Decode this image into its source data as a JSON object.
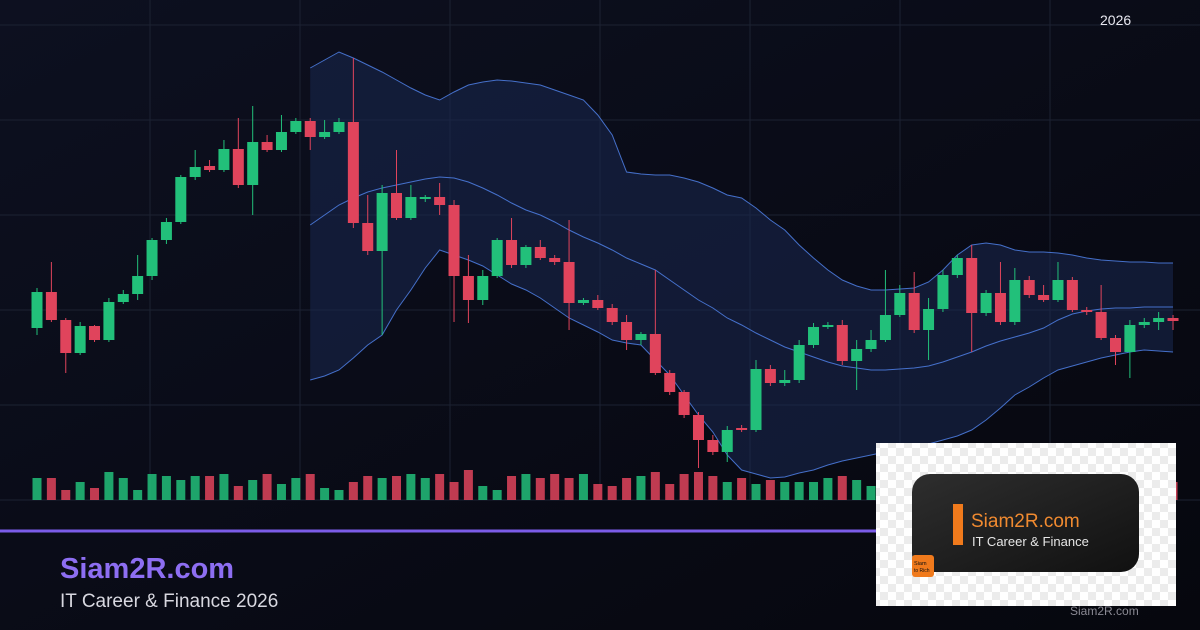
{
  "brand": {
    "year_tag": "2026",
    "title": "Siam2R.com",
    "subtitle": "IT Career & Finance 2026",
    "watermark": "Siam2R.com"
  },
  "logo": {
    "title": "Siam2R.com",
    "subtitle": "IT Career & Finance",
    "icon_top": "Siam",
    "icon_bottom": "to Rich"
  },
  "chart_data": {
    "type": "candlestick",
    "open": [
      172,
      208,
      180,
      147,
      174,
      160,
      198,
      206,
      224,
      260,
      278,
      323,
      334,
      330,
      351,
      315,
      358,
      350,
      368,
      379,
      363,
      368,
      378,
      277,
      249,
      307,
      282,
      301,
      303,
      295,
      224,
      200,
      224,
      260,
      235,
      253,
      242,
      238,
      197,
      200,
      192,
      178,
      160,
      166,
      127,
      108,
      85,
      60,
      48,
      72,
      70,
      131,
      117,
      120,
      155,
      173,
      175,
      139,
      151,
      160,
      185,
      207,
      170,
      191,
      225,
      242,
      187,
      207,
      178,
      220,
      205,
      200,
      220,
      190,
      188,
      162,
      148,
      175,
      178,
      182
    ],
    "high": [
      212,
      238,
      182,
      178,
      175,
      202,
      210,
      245,
      262,
      282,
      325,
      350,
      340,
      360,
      382,
      394,
      365,
      385,
      382,
      382,
      380,
      382,
      442,
      305,
      315,
      350,
      315,
      305,
      317,
      300,
      245,
      230,
      262,
      282,
      255,
      260,
      245,
      280,
      202,
      205,
      196,
      185,
      168,
      230,
      130,
      110,
      88,
      65,
      74,
      75,
      140,
      135,
      130,
      160,
      177,
      178,
      180,
      160,
      170,
      230,
      215,
      228,
      202,
      230,
      245,
      255,
      210,
      238,
      232,
      224,
      215,
      238,
      223,
      193,
      215,
      165,
      180,
      182,
      188,
      185
    ],
    "low": [
      165,
      178,
      127,
      145,
      158,
      158,
      196,
      200,
      220,
      256,
      276,
      320,
      328,
      328,
      312,
      285,
      348,
      348,
      366,
      350,
      361,
      366,
      272,
      245,
      165,
      280,
      280,
      298,
      285,
      178,
      177,
      195,
      222,
      232,
      232,
      240,
      235,
      170,
      195,
      190,
      175,
      150,
      155,
      125,
      105,
      82,
      32,
      45,
      38,
      68,
      68,
      114,
      114,
      117,
      152,
      171,
      135,
      110,
      148,
      158,
      183,
      167,
      140,
      188,
      222,
      148,
      184,
      175,
      175,
      202,
      198,
      198,
      188,
      185,
      160,
      135,
      122,
      172,
      170,
      170
    ],
    "close": [
      208,
      180,
      147,
      174,
      160,
      198,
      206,
      224,
      260,
      278,
      323,
      333,
      330,
      351,
      315,
      358,
      350,
      368,
      379,
      363,
      368,
      378,
      277,
      249,
      307,
      282,
      303,
      303,
      295,
      224,
      200,
      224,
      260,
      235,
      253,
      242,
      238,
      197,
      200,
      192,
      178,
      160,
      166,
      127,
      108,
      85,
      60,
      48,
      70,
      70,
      131,
      117,
      120,
      155,
      173,
      175,
      139,
      151,
      160,
      185,
      207,
      170,
      191,
      225,
      242,
      187,
      207,
      178,
      220,
      205,
      200,
      220,
      190,
      188,
      162,
      148,
      175,
      178,
      182,
      179
    ],
    "volume": [
      22,
      22,
      10,
      18,
      12,
      28,
      22,
      10,
      26,
      24,
      20,
      24,
      24,
      26,
      14,
      20,
      26,
      16,
      22,
      26,
      12,
      10,
      18,
      24,
      22,
      24,
      26,
      22,
      26,
      18,
      30,
      14,
      10,
      24,
      26,
      22,
      26,
      22,
      26,
      16,
      14,
      22,
      24,
      28,
      16,
      26,
      28,
      24,
      18,
      22,
      16,
      20,
      18,
      18,
      18,
      22,
      24,
      20,
      14,
      10,
      12,
      18,
      20,
      14,
      22,
      24,
      18,
      20,
      16,
      22,
      26,
      22,
      14,
      16,
      20,
      24,
      22,
      18,
      20,
      18
    ],
    "bands": {
      "upper": [
        null,
        null,
        null,
        null,
        null,
        null,
        null,
        null,
        null,
        null,
        null,
        null,
        null,
        null,
        null,
        null,
        null,
        null,
        null,
        432,
        440,
        448,
        442,
        435,
        428,
        420,
        412,
        405,
        400,
        408,
        415,
        418,
        420,
        419,
        417,
        415,
        410,
        405,
        400,
        385,
        365,
        328,
        326,
        325,
        325,
        322,
        318,
        312,
        305,
        302,
        292,
        280,
        270,
        255,
        242,
        230,
        220,
        214,
        210,
        210,
        211,
        212,
        218,
        230,
        245,
        255,
        257,
        255,
        250,
        248,
        248,
        247,
        245,
        242,
        240,
        239,
        238,
        238,
        237,
        237
      ],
      "middle": [
        null,
        null,
        null,
        null,
        null,
        null,
        null,
        null,
        null,
        null,
        null,
        null,
        null,
        null,
        null,
        null,
        null,
        null,
        null,
        275,
        285,
        295,
        302,
        308,
        312,
        315,
        318,
        321,
        323,
        322,
        318,
        312,
        305,
        297,
        290,
        285,
        278,
        270,
        263,
        257,
        250,
        242,
        236,
        230,
        220,
        210,
        200,
        192,
        182,
        175,
        167,
        160,
        153,
        148,
        143,
        138,
        134,
        132,
        130,
        130,
        131,
        132,
        134,
        138,
        143,
        148,
        154,
        159,
        163,
        167,
        172,
        180,
        186,
        189,
        191,
        192,
        192,
        193,
        193,
        193
      ],
      "lower": [
        null,
        null,
        null,
        null,
        null,
        null,
        null,
        null,
        null,
        null,
        null,
        null,
        null,
        null,
        null,
        null,
        null,
        null,
        null,
        120,
        124,
        130,
        142,
        155,
        165,
        190,
        210,
        232,
        250,
        245,
        240,
        234,
        225,
        216,
        210,
        202,
        192,
        182,
        175,
        168,
        160,
        157,
        155,
        140,
        125,
        105,
        85,
        68,
        45,
        30,
        26,
        22,
        23,
        27,
        30,
        35,
        39,
        42,
        45,
        48,
        50,
        52,
        56,
        60,
        64,
        70,
        80,
        92,
        105,
        113,
        122,
        130,
        134,
        138,
        142,
        145,
        148,
        150,
        149,
        148
      ]
    },
    "ylim": [
      0,
      475
    ],
    "vlim": [
      0,
      80
    ],
    "colors": {
      "up": "#22c07a",
      "down": "#e0445c",
      "band": "#4f80e6",
      "band_fill": "#1a2850"
    }
  }
}
